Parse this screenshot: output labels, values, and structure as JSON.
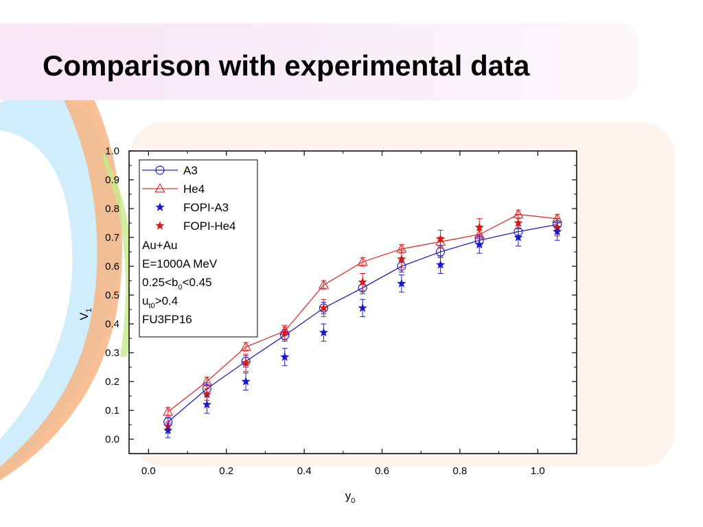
{
  "slide": {
    "title": "Comparison with experimental data"
  },
  "chart_data": {
    "type": "line",
    "xlabel": "y",
    "xlabel_sub": "0",
    "ylabel": "V",
    "ylabel_sub": "1",
    "xlim": [
      -0.05,
      1.1
    ],
    "ylim": [
      -0.05,
      1.0
    ],
    "xticks": [
      "0.0",
      "0.2",
      "0.4",
      "0.6",
      "0.8",
      "1.0"
    ],
    "yticks": [
      "0.0",
      "0.1",
      "0.2",
      "0.3",
      "0.4",
      "0.5",
      "0.6",
      "0.7",
      "0.8",
      "0.9",
      "1.0"
    ],
    "x": [
      0.05,
      0.15,
      0.25,
      0.35,
      0.45,
      0.55,
      0.65,
      0.75,
      0.85,
      0.95,
      1.05
    ],
    "series": [
      {
        "name": "A3",
        "kind": "line-circle",
        "color": "#2020c0",
        "values": [
          0.06,
          0.175,
          0.27,
          0.36,
          0.455,
          0.525,
          0.6,
          0.65,
          0.69,
          0.72,
          0.745
        ],
        "err": [
          0.015,
          0.02,
          0.02,
          0.02,
          0.02,
          0.02,
          0.02,
          0.02,
          0.02,
          0.02,
          0.02
        ]
      },
      {
        "name": "He4",
        "kind": "line-triangle",
        "color": "#e03030",
        "values": [
          0.095,
          0.2,
          0.32,
          0.375,
          0.535,
          0.615,
          0.66,
          0.685,
          0.71,
          0.78,
          0.765
        ],
        "err": [
          0.015,
          0.015,
          0.015,
          0.015,
          0.015,
          0.015,
          0.015,
          0.015,
          0.015,
          0.015,
          0.015
        ]
      },
      {
        "name": "FOPI-A3",
        "kind": "star",
        "color": "#1a1ad0",
        "values": [
          0.03,
          0.12,
          0.2,
          0.285,
          0.37,
          0.455,
          0.54,
          0.605,
          0.675,
          0.7,
          0.72
        ],
        "err": [
          0.025,
          0.03,
          0.03,
          0.03,
          0.03,
          0.03,
          0.03,
          0.03,
          0.03,
          0.03,
          0.03
        ]
      },
      {
        "name": "FOPI-He4",
        "kind": "star",
        "color": "#e01515",
        "values": [
          0.045,
          0.155,
          0.265,
          0.37,
          0.455,
          0.545,
          0.625,
          0.695,
          0.735,
          0.75,
          0.735
        ],
        "err": [
          0.015,
          0.02,
          0.03,
          0.025,
          0.03,
          0.03,
          0.03,
          0.03,
          0.03,
          0.03,
          0.03
        ]
      }
    ],
    "legend_position": "top-left",
    "annotations": [
      {
        "text": "Au+Au"
      },
      {
        "text": "E=1000A MeV"
      },
      {
        "pre": "0.25<b",
        "sub": "0",
        "post": "<0.45"
      },
      {
        "pre": "u",
        "sub": "t0",
        "post": ">0.4"
      },
      {
        "text": "FU3FP16"
      }
    ]
  }
}
